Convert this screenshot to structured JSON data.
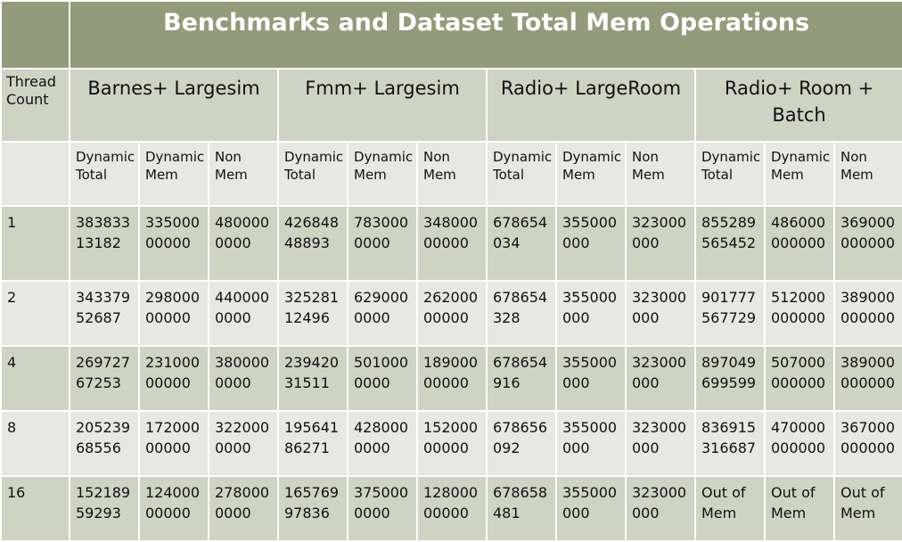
{
  "title": "Benchmarks and Dataset Total Mem Operations",
  "corner_header": [
    "Thread",
    "Count"
  ],
  "groups": [
    {
      "label": [
        "Barnes+ Largesim"
      ]
    },
    {
      "label": [
        "Fmm+ Largesim"
      ]
    },
    {
      "label": [
        "Radio+ LargeRoom"
      ]
    },
    {
      "label": [
        "Radio+ Room +",
        "Batch"
      ]
    }
  ],
  "subheaders": [
    [
      "Dynamic",
      "Total"
    ],
    [
      "Dynamic",
      "Mem"
    ],
    [
      "Non",
      "Mem"
    ]
  ],
  "rows": [
    {
      "thread": "1",
      "cells": [
        [
          "383833",
          "13182"
        ],
        [
          "335000",
          "00000"
        ],
        [
          "480000",
          "0000"
        ],
        [
          "426848",
          "48893"
        ],
        [
          "783000",
          "0000"
        ],
        [
          "348000",
          "00000"
        ],
        [
          "678654",
          "034"
        ],
        [
          "355000",
          "000"
        ],
        [
          "323000",
          "000"
        ],
        [
          "855289",
          "565452"
        ],
        [
          "486000",
          "000000"
        ],
        [
          "369000",
          "000000"
        ]
      ]
    },
    {
      "thread": "2",
      "cells": [
        [
          "343379",
          "52687"
        ],
        [
          "298000",
          "00000"
        ],
        [
          "440000",
          "0000"
        ],
        [
          "325281",
          "12496"
        ],
        [
          "629000",
          "0000"
        ],
        [
          "262000",
          "00000"
        ],
        [
          "678654",
          "328"
        ],
        [
          "355000",
          "000"
        ],
        [
          "323000",
          "000"
        ],
        [
          "901777",
          "567729"
        ],
        [
          "512000",
          "000000"
        ],
        [
          "389000",
          "000000"
        ]
      ]
    },
    {
      "thread": "4",
      "cells": [
        [
          "269727",
          "67253"
        ],
        [
          "231000",
          "00000"
        ],
        [
          "380000",
          "0000"
        ],
        [
          "239420",
          "31511"
        ],
        [
          "501000",
          "0000"
        ],
        [
          "189000",
          "00000"
        ],
        [
          "678654",
          "916"
        ],
        [
          "355000",
          "000"
        ],
        [
          "323000",
          "000"
        ],
        [
          "897049",
          "699599"
        ],
        [
          "507000",
          "000000"
        ],
        [
          "389000",
          "000000"
        ]
      ]
    },
    {
      "thread": "8",
      "cells": [
        [
          "205239",
          "68556"
        ],
        [
          "172000",
          "00000"
        ],
        [
          "322000",
          "0000"
        ],
        [
          "195641",
          "86271"
        ],
        [
          "428000",
          "0000"
        ],
        [
          "152000",
          "00000"
        ],
        [
          "678656",
          "092"
        ],
        [
          "355000",
          "000"
        ],
        [
          "323000",
          "000"
        ],
        [
          "836915",
          "316687"
        ],
        [
          "470000",
          "000000"
        ],
        [
          "367000",
          "000000"
        ]
      ]
    },
    {
      "thread": "16",
      "cells": [
        [
          "152189",
          "59293"
        ],
        [
          "124000",
          "00000"
        ],
        [
          "278000",
          "0000"
        ],
        [
          "165769",
          "97836"
        ],
        [
          "375000",
          "0000"
        ],
        [
          "128000",
          "00000"
        ],
        [
          "678658",
          "481"
        ],
        [
          "355000",
          "000"
        ],
        [
          "323000",
          "000"
        ],
        [
          "Out of",
          "Mem"
        ],
        [
          "Out of",
          "Mem"
        ],
        [
          "Out of",
          "Mem"
        ]
      ]
    }
  ],
  "colors": {
    "header": "#939b7a",
    "band_dark": "#cfd3c4",
    "band_light": "#e7e8e1",
    "title_text": "#ffffff"
  }
}
